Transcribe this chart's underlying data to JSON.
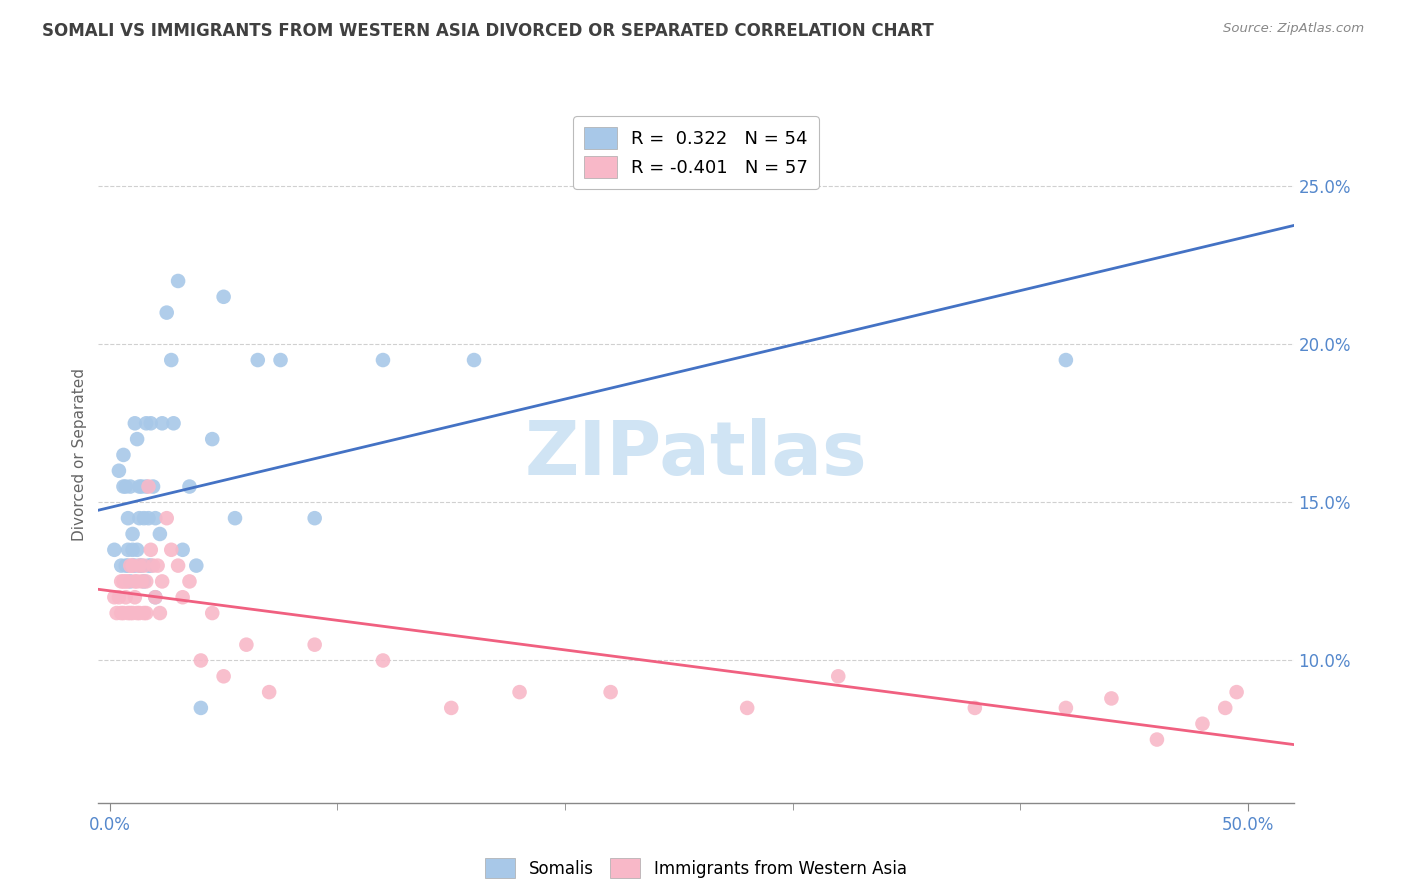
{
  "title": "SOMALI VS IMMIGRANTS FROM WESTERN ASIA DIVORCED OR SEPARATED CORRELATION CHART",
  "source": "Source: ZipAtlas.com",
  "xlabel_ticks_labels": [
    "0.0%",
    "50.0%"
  ],
  "xlabel_vals": [
    0.0,
    0.5
  ],
  "xlabel_minor_vals": [
    0.1,
    0.2,
    0.3,
    0.4
  ],
  "ylabel": "Divorced or Separated",
  "ylabel_ticks": [
    "10.0%",
    "15.0%",
    "20.0%",
    "25.0%"
  ],
  "ylabel_vals": [
    0.1,
    0.15,
    0.2,
    0.25
  ],
  "xlim": [
    -0.005,
    0.52
  ],
  "ylim": [
    0.055,
    0.275
  ],
  "legend_entries": [
    {
      "label": "R =  0.322   N = 54",
      "color": "#a8c8e8"
    },
    {
      "label": "R = -0.401   N = 57",
      "color": "#f8b8c8"
    }
  ],
  "somalis_color": "#a8c8e8",
  "western_asia_color": "#f8b8c8",
  "somalis_line_color": "#4472c4",
  "western_asia_line_color": "#f06080",
  "grid_color": "#d0d0d0",
  "title_color": "#404040",
  "axis_label_color": "#5588cc",
  "watermark_color": "#d0e4f4",
  "somalis_x": [
    0.002,
    0.004,
    0.005,
    0.006,
    0.006,
    0.007,
    0.007,
    0.008,
    0.008,
    0.008,
    0.009,
    0.009,
    0.01,
    0.01,
    0.01,
    0.011,
    0.011,
    0.012,
    0.012,
    0.013,
    0.013,
    0.013,
    0.014,
    0.014,
    0.015,
    0.015,
    0.016,
    0.016,
    0.017,
    0.017,
    0.018,
    0.018,
    0.019,
    0.02,
    0.02,
    0.022,
    0.023,
    0.025,
    0.027,
    0.028,
    0.03,
    0.032,
    0.035,
    0.038,
    0.04,
    0.045,
    0.05,
    0.055,
    0.065,
    0.075,
    0.09,
    0.12,
    0.16,
    0.42
  ],
  "somalis_y": [
    0.135,
    0.16,
    0.13,
    0.165,
    0.155,
    0.13,
    0.155,
    0.145,
    0.135,
    0.13,
    0.155,
    0.125,
    0.14,
    0.135,
    0.13,
    0.175,
    0.13,
    0.17,
    0.135,
    0.155,
    0.145,
    0.13,
    0.155,
    0.13,
    0.145,
    0.125,
    0.175,
    0.155,
    0.13,
    0.145,
    0.175,
    0.13,
    0.155,
    0.145,
    0.12,
    0.14,
    0.175,
    0.21,
    0.195,
    0.175,
    0.22,
    0.135,
    0.155,
    0.13,
    0.085,
    0.17,
    0.215,
    0.145,
    0.195,
    0.195,
    0.145,
    0.195,
    0.195,
    0.195
  ],
  "western_asia_x": [
    0.002,
    0.003,
    0.004,
    0.005,
    0.005,
    0.006,
    0.006,
    0.007,
    0.007,
    0.008,
    0.008,
    0.009,
    0.009,
    0.01,
    0.01,
    0.011,
    0.011,
    0.012,
    0.012,
    0.013,
    0.013,
    0.014,
    0.015,
    0.015,
    0.016,
    0.016,
    0.017,
    0.018,
    0.019,
    0.02,
    0.021,
    0.022,
    0.023,
    0.025,
    0.027,
    0.03,
    0.032,
    0.035,
    0.04,
    0.045,
    0.05,
    0.06,
    0.07,
    0.09,
    0.12,
    0.15,
    0.18,
    0.22,
    0.28,
    0.32,
    0.38,
    0.42,
    0.44,
    0.46,
    0.48,
    0.49,
    0.495
  ],
  "western_asia_y": [
    0.12,
    0.115,
    0.12,
    0.115,
    0.125,
    0.115,
    0.125,
    0.12,
    0.125,
    0.115,
    0.125,
    0.115,
    0.13,
    0.115,
    0.13,
    0.12,
    0.125,
    0.115,
    0.125,
    0.115,
    0.13,
    0.125,
    0.115,
    0.13,
    0.115,
    0.125,
    0.155,
    0.135,
    0.13,
    0.12,
    0.13,
    0.115,
    0.125,
    0.145,
    0.135,
    0.13,
    0.12,
    0.125,
    0.1,
    0.115,
    0.095,
    0.105,
    0.09,
    0.105,
    0.1,
    0.085,
    0.09,
    0.09,
    0.085,
    0.095,
    0.085,
    0.085,
    0.088,
    0.075,
    0.08,
    0.085,
    0.09
  ]
}
